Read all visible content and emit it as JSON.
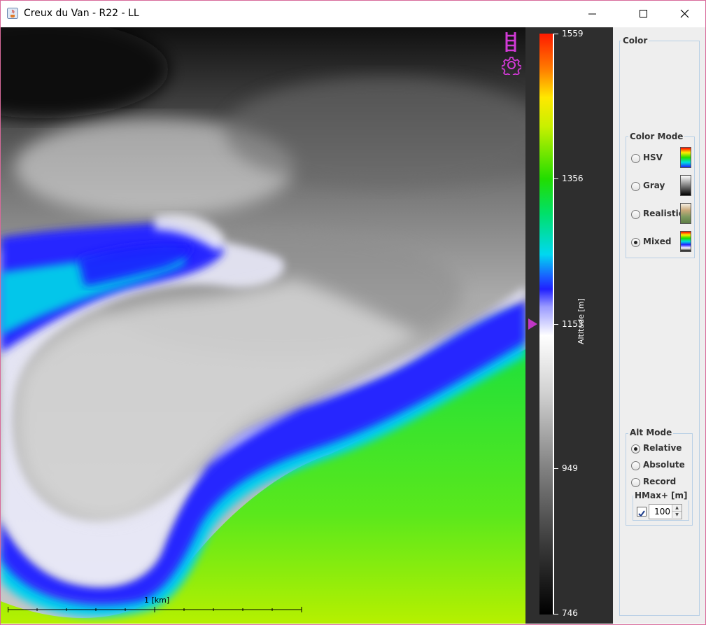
{
  "window": {
    "title": "Creux du Van - R22 - LL",
    "controls": [
      "minimize",
      "maximize",
      "close"
    ]
  },
  "map": {
    "icons": [
      "ladder-icon",
      "gear-icon"
    ],
    "scale_label": "1  [km]"
  },
  "legend": {
    "axis_title": "Altitude [m]",
    "ticks": [
      {
        "label": "1559",
        "value": 1559
      },
      {
        "label": "1356",
        "value": 1356
      },
      {
        "label": "1153",
        "value": 1153
      },
      {
        "label": "949",
        "value": 949
      },
      {
        "label": "746",
        "value": 746
      }
    ],
    "marker_value": 1153,
    "colors": {
      "high": "#ff0000",
      "orange": "#ff8800",
      "yellow": "#ffee00",
      "green": "#22dd00",
      "cyan": "#00e0e0",
      "blue": "#2020ff",
      "white": "#ffffff",
      "low": "#000000",
      "marker": "#c036c4"
    }
  },
  "panel": {
    "color_group_title": "Color",
    "color_mode": {
      "title": "Color Mode",
      "options": [
        {
          "label": "HSV",
          "selected": false,
          "swatch": "hsv"
        },
        {
          "label": "Gray",
          "selected": false,
          "swatch": "gray"
        },
        {
          "label": "Realistic",
          "selected": false,
          "swatch": "realistic"
        },
        {
          "label": "Mixed",
          "selected": true,
          "swatch": "mixed"
        }
      ]
    },
    "alt_mode": {
      "title": "Alt Mode",
      "options": [
        {
          "label": "Relative",
          "selected": true
        },
        {
          "label": "Absolute",
          "selected": false
        },
        {
          "label": "Record",
          "selected": false
        }
      ],
      "hmax": {
        "title": "HMax+ [m]",
        "checked": true,
        "value": "100"
      }
    }
  }
}
